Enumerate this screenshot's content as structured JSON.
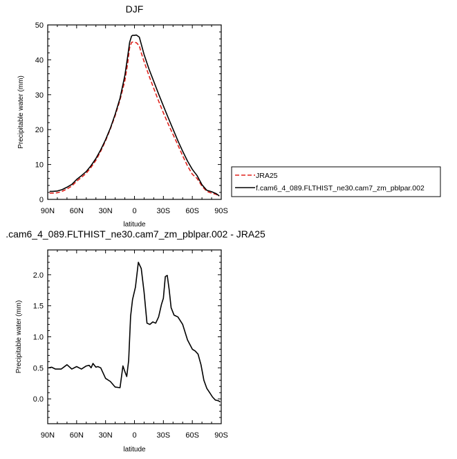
{
  "chart_data": [
    {
      "type": "line",
      "title": "DJF",
      "xlabel": "latitude",
      "ylabel": "Precipitable water (mm)",
      "x_tick_labels": [
        "90N",
        "60N",
        "30N",
        "0",
        "30S",
        "60S",
        "90S"
      ],
      "x_tick_values": [
        90,
        60,
        30,
        0,
        -30,
        -60,
        -90
      ],
      "xlim": [
        90,
        -90
      ],
      "ylim": [
        0,
        50
      ],
      "y_ticks": [
        0,
        10,
        20,
        30,
        40,
        50
      ],
      "legend_position": "right",
      "series": [
        {
          "name": "JRA25",
          "color": "#e0211b",
          "dash": true,
          "x": [
            88,
            85,
            80,
            75,
            70,
            65,
            60,
            55,
            50,
            45,
            40,
            35,
            30,
            25,
            20,
            15,
            10,
            7,
            5,
            3,
            2,
            0,
            -2,
            -5,
            -7,
            -10,
            -15,
            -20,
            -25,
            -30,
            -35,
            -40,
            -45,
            -50,
            -55,
            -60,
            -65,
            -70,
            -75,
            -80,
            -85,
            -88
          ],
          "values": [
            1.8,
            1.8,
            1.9,
            2.3,
            3.0,
            3.8,
            5.2,
            6.3,
            7.5,
            9.2,
            11.2,
            13.8,
            16.8,
            20.2,
            24.0,
            28.5,
            34.0,
            39.0,
            43.5,
            45.0,
            45.1,
            45.0,
            44.9,
            44.0,
            42.0,
            39.5,
            35.5,
            31.8,
            28.2,
            24.8,
            21.6,
            18.6,
            15.6,
            12.5,
            9.6,
            7.2,
            6.0,
            3.8,
            2.3,
            1.8,
            1.4,
            0.9
          ]
        },
        {
          "name": "f.cam6_4_089.FLTHIST_ne30.cam7_zm_pblpar.002",
          "color": "#000000",
          "dash": false,
          "x": [
            88,
            85,
            80,
            75,
            70,
            65,
            60,
            55,
            50,
            45,
            40,
            35,
            30,
            25,
            20,
            15,
            10,
            7,
            5,
            3,
            2,
            0,
            -2,
            -5,
            -7,
            -10,
            -15,
            -20,
            -25,
            -30,
            -35,
            -40,
            -45,
            -50,
            -55,
            -60,
            -65,
            -70,
            -75,
            -80,
            -85,
            -88
          ],
          "values": [
            2.3,
            2.3,
            2.4,
            2.8,
            3.5,
            4.3,
            5.7,
            6.8,
            8.0,
            9.7,
            11.7,
            14.2,
            17.1,
            20.4,
            24.4,
            29.0,
            35.5,
            41.0,
            45.0,
            46.8,
            47.0,
            47.0,
            47.1,
            46.5,
            44.5,
            41.5,
            37.4,
            33.8,
            30.2,
            26.8,
            23.4,
            20.1,
            16.8,
            13.8,
            11.0,
            8.6,
            6.8,
            4.2,
            2.6,
            2.2,
            1.6,
            1.0
          ]
        }
      ]
    },
    {
      "type": "line",
      "title": ".cam6_4_089.FLTHIST_ne30.cam7_zm_pblpar.002 - JRA25",
      "xlabel": "latitude",
      "ylabel": "Precipitable water (mm)",
      "x_tick_labels": [
        "90N",
        "60N",
        "30N",
        "0",
        "30S",
        "60S",
        "90S"
      ],
      "x_tick_values": [
        90,
        60,
        30,
        0,
        -30,
        -60,
        -90
      ],
      "xlim": [
        90,
        -90
      ],
      "ylim": [
        -0.4,
        2.4
      ],
      "y_ticks": [
        0.0,
        0.5,
        1.0,
        1.5,
        2.0
      ],
      "y_tick_labels": [
        "0.0",
        "0.5",
        "1.0",
        "1.5",
        "2.0"
      ],
      "series": [
        {
          "name": "",
          "color": "#000000",
          "dash": false,
          "x": [
            89,
            86,
            82,
            76,
            70,
            65,
            60,
            55,
            50,
            47,
            45,
            43,
            40,
            38,
            35,
            30,
            25,
            20,
            15,
            12,
            10,
            8,
            6,
            4,
            2,
            -1,
            -4,
            -7,
            -10,
            -13,
            -16,
            -19,
            -22,
            -25,
            -28,
            -30,
            -32,
            -34,
            -36,
            -38,
            -41,
            -45,
            -50,
            -55,
            -60,
            -63,
            -66,
            -69,
            -72,
            -75,
            -78,
            -81,
            -84,
            -87,
            -89
          ],
          "values": [
            0.5,
            0.51,
            0.48,
            0.48,
            0.55,
            0.48,
            0.52,
            0.48,
            0.53,
            0.54,
            0.5,
            0.57,
            0.51,
            0.52,
            0.5,
            0.33,
            0.28,
            0.19,
            0.18,
            0.53,
            0.44,
            0.36,
            0.62,
            1.33,
            1.6,
            1.8,
            2.2,
            2.1,
            1.72,
            1.22,
            1.2,
            1.24,
            1.22,
            1.32,
            1.52,
            1.62,
            1.97,
            1.99,
            1.76,
            1.47,
            1.35,
            1.32,
            1.2,
            0.95,
            0.8,
            0.77,
            0.72,
            0.55,
            0.3,
            0.17,
            0.1,
            0.03,
            -0.02,
            -0.03,
            -0.05
          ]
        }
      ]
    }
  ]
}
